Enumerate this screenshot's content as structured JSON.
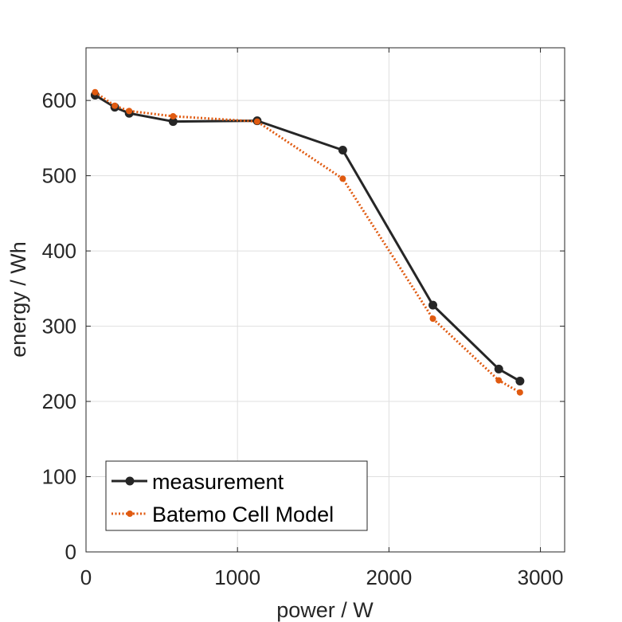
{
  "chart_data": {
    "type": "line",
    "xlabel": "power / W",
    "ylabel": "energy / Wh",
    "xlim": [
      0,
      3160
    ],
    "ylim": [
      0,
      670
    ],
    "xticks": [
      0,
      1000,
      2000,
      3000
    ],
    "yticks": [
      0,
      100,
      200,
      300,
      400,
      500,
      600
    ],
    "xtick_labels": [
      "0",
      "1000",
      "2000",
      "3000"
    ],
    "ytick_labels": [
      "0",
      "100",
      "200",
      "300",
      "400",
      "500",
      "600"
    ],
    "grid": true,
    "legend_position": "bottom-left",
    "series": [
      {
        "name": "measurement",
        "color": "#262626",
        "line_style": "solid",
        "marker": "circle",
        "x": [
          60,
          190,
          285,
          575,
          1130,
          1695,
          2290,
          2725,
          2865
        ],
        "y": [
          607,
          591,
          583,
          572,
          573,
          534,
          328,
          243,
          227
        ]
      },
      {
        "name": "Batemo Cell Model",
        "color": "#e05a10",
        "line_style": "dotted",
        "marker": "dot",
        "x": [
          60,
          190,
          285,
          575,
          1130,
          1695,
          2290,
          2725,
          2865
        ],
        "y": [
          611,
          593,
          586,
          579,
          572,
          496,
          310,
          228,
          212
        ]
      }
    ]
  }
}
